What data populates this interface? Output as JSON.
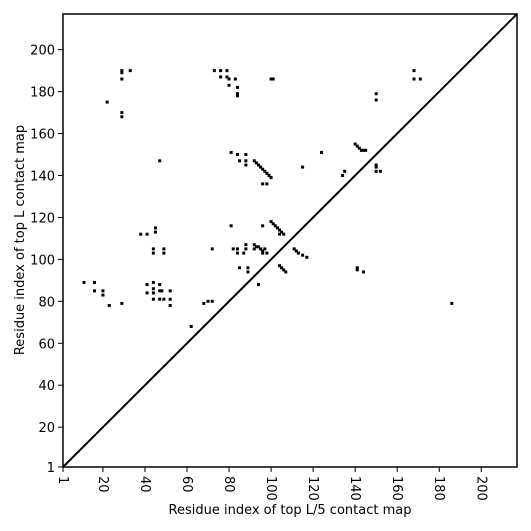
{
  "chart_data": {
    "type": "scatter",
    "x_label": "Residue index of top L/5 contact map",
    "y_label": "Residue index of top L contact map",
    "xlim": [
      1,
      217
    ],
    "ylim": [
      1,
      217
    ],
    "xticks": [
      1,
      20,
      40,
      60,
      80,
      100,
      120,
      140,
      160,
      180,
      200
    ],
    "yticks": [
      1,
      20,
      40,
      60,
      80,
      100,
      120,
      140,
      160,
      180,
      200
    ],
    "color": "#000000",
    "diagonal": true,
    "x": [
      29,
      29,
      29,
      33,
      22,
      29,
      29,
      47,
      73,
      76,
      79,
      76,
      79,
      80,
      83,
      80,
      84,
      84,
      84,
      100,
      101,
      81,
      84,
      88,
      85,
      88,
      88,
      92,
      93,
      94,
      95,
      96,
      97,
      98,
      99,
      100,
      96,
      98,
      115,
      124,
      134,
      135,
      140,
      141,
      142,
      143,
      144,
      145,
      150,
      150,
      152,
      150,
      150,
      150,
      168,
      168,
      171,
      100,
      101,
      102,
      103,
      104,
      105,
      104,
      106,
      96,
      81,
      92,
      93,
      94,
      95,
      96,
      97,
      96,
      98,
      92,
      88,
      88,
      82,
      84,
      87,
      84,
      72,
      45,
      45,
      38,
      41,
      44,
      44,
      49,
      49,
      111,
      112,
      113,
      115,
      117,
      104,
      105,
      106,
      107,
      141,
      141,
      144,
      85,
      89,
      89,
      94,
      72,
      70,
      68,
      62,
      186,
      11,
      16,
      16,
      20,
      20,
      23,
      29,
      41,
      41,
      44,
      44,
      44,
      44,
      47,
      47,
      48,
      47,
      49,
      52,
      52,
      52
    ],
    "values": [
      190,
      189,
      186,
      190,
      175,
      170,
      168,
      147,
      190,
      190,
      190,
      187,
      187,
      186,
      186,
      183,
      182,
      179,
      178,
      186,
      186,
      151,
      150,
      150,
      147,
      147,
      145,
      147,
      146,
      145,
      144,
      143,
      142,
      141,
      140,
      139,
      136,
      136,
      144,
      151,
      140,
      142,
      155,
      154,
      153,
      152,
      152,
      152,
      145,
      144,
      142,
      142,
      179,
      176,
      190,
      186,
      186,
      118,
      117,
      116,
      115,
      114,
      113,
      112,
      112,
      116,
      116,
      107,
      106,
      106,
      105,
      104,
      105,
      103,
      103,
      105,
      107,
      105,
      105,
      105,
      103,
      103,
      105,
      115,
      113,
      112,
      112,
      105,
      103,
      105,
      103,
      105,
      104,
      103,
      102,
      101,
      97,
      96,
      95,
      94,
      96,
      95,
      94,
      96,
      96,
      94,
      88,
      80,
      80,
      79,
      68,
      79,
      89,
      89,
      85,
      85,
      83,
      78,
      79,
      88,
      84,
      89,
      86,
      84,
      81,
      88,
      85,
      85,
      81,
      81,
      85,
      81,
      78
    ]
  }
}
